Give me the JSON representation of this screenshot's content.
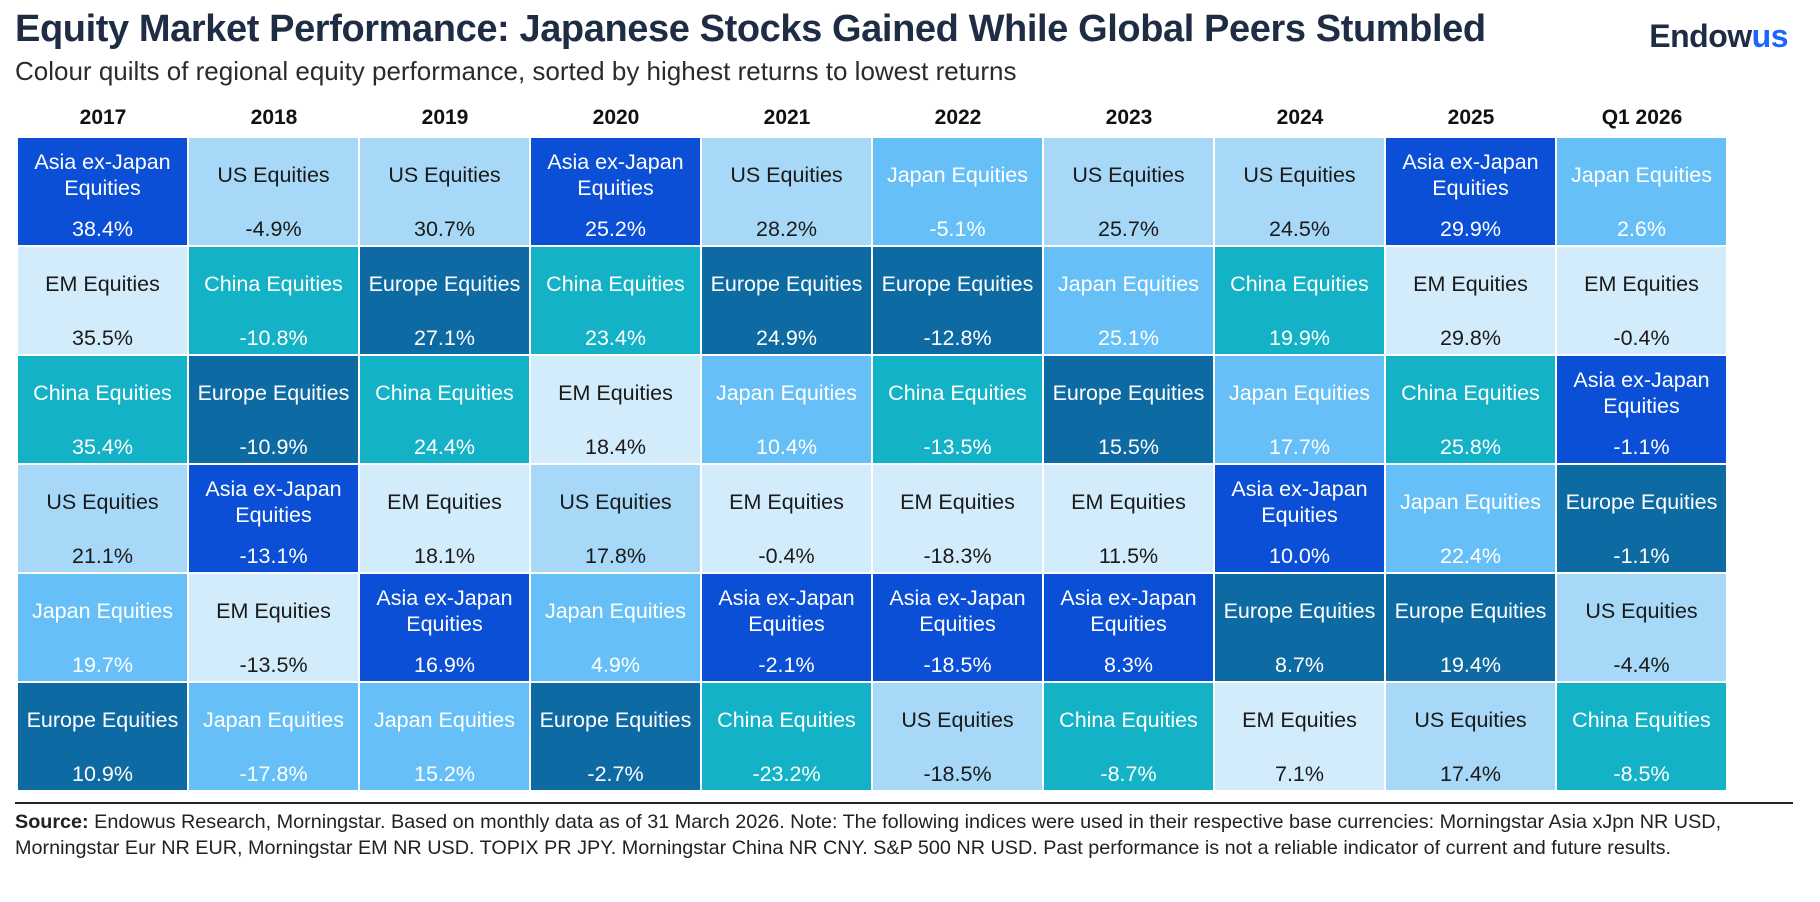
{
  "header": {
    "title": "Equity Market Performance: Japanese Stocks Gained While Global Peers Stumbled",
    "subtitle": "Colour quilts of regional equity performance, sorted by highest returns to lowest returns",
    "logo_main": "Endow",
    "logo_accent": "us"
  },
  "chart_data": {
    "type": "table",
    "title": "Equity Market Performance: Japanese Stocks Gained While Global Peers Stumbled",
    "subtitle": "Colour quilts of regional equity performance, sorted by highest returns to lowest returns",
    "years": [
      "2017",
      "2018",
      "2019",
      "2020",
      "2021",
      "2022",
      "2023",
      "2024",
      "2025",
      "Q1 2026"
    ],
    "columns": [
      [
        {
          "name": "Asia ex-Japan Equities",
          "value": "38.4%"
        },
        {
          "name": "EM Equities",
          "value": "35.5%"
        },
        {
          "name": "China Equities",
          "value": "35.4%"
        },
        {
          "name": "US Equities",
          "value": "21.1%"
        },
        {
          "name": "Japan Equities",
          "value": "19.7%"
        },
        {
          "name": "Europe Equities",
          "value": "10.9%"
        }
      ],
      [
        {
          "name": "US Equities",
          "value": "-4.9%"
        },
        {
          "name": "China Equities",
          "value": "-10.8%"
        },
        {
          "name": "Europe Equities",
          "value": "-10.9%"
        },
        {
          "name": "Asia ex-Japan Equities",
          "value": "-13.1%"
        },
        {
          "name": "EM Equities",
          "value": "-13.5%"
        },
        {
          "name": "Japan Equities",
          "value": "-17.8%"
        }
      ],
      [
        {
          "name": "US Equities",
          "value": "30.7%"
        },
        {
          "name": "Europe Equities",
          "value": "27.1%"
        },
        {
          "name": "China Equities",
          "value": "24.4%"
        },
        {
          "name": "EM Equities",
          "value": "18.1%"
        },
        {
          "name": "Asia ex-Japan Equities",
          "value": "16.9%"
        },
        {
          "name": "Japan Equities",
          "value": "15.2%"
        }
      ],
      [
        {
          "name": "Asia ex-Japan Equities",
          "value": "25.2%"
        },
        {
          "name": "China Equities",
          "value": "23.4%"
        },
        {
          "name": "EM Equities",
          "value": "18.4%"
        },
        {
          "name": "US Equities",
          "value": "17.8%"
        },
        {
          "name": "Japan Equities",
          "value": "4.9%"
        },
        {
          "name": "Europe Equities",
          "value": "-2.7%"
        }
      ],
      [
        {
          "name": "US Equities",
          "value": "28.2%"
        },
        {
          "name": "Europe Equities",
          "value": "24.9%"
        },
        {
          "name": "Japan Equities",
          "value": "10.4%"
        },
        {
          "name": "EM Equities",
          "value": "-0.4%"
        },
        {
          "name": "Asia ex-Japan Equities",
          "value": "-2.1%"
        },
        {
          "name": "China Equities",
          "value": "-23.2%"
        }
      ],
      [
        {
          "name": "Japan Equities",
          "value": "-5.1%"
        },
        {
          "name": "Europe Equities",
          "value": "-12.8%"
        },
        {
          "name": "China Equities",
          "value": "-13.5%"
        },
        {
          "name": "EM Equities",
          "value": "-18.3%"
        },
        {
          "name": "Asia ex-Japan Equities",
          "value": "-18.5%"
        },
        {
          "name": "US Equities",
          "value": "-18.5%"
        }
      ],
      [
        {
          "name": "US Equities",
          "value": "25.7%"
        },
        {
          "name": "Japan Equities",
          "value": "25.1%"
        },
        {
          "name": "Europe Equities",
          "value": "15.5%"
        },
        {
          "name": "EM Equities",
          "value": "11.5%"
        },
        {
          "name": "Asia ex-Japan Equities",
          "value": "8.3%"
        },
        {
          "name": "China Equities",
          "value": "-8.7%"
        }
      ],
      [
        {
          "name": "US Equities",
          "value": "24.5%"
        },
        {
          "name": "China Equities",
          "value": "19.9%"
        },
        {
          "name": "Japan Equities",
          "value": "17.7%"
        },
        {
          "name": "Asia ex-Japan Equities",
          "value": "10.0%"
        },
        {
          "name": "Europe Equities",
          "value": "8.7%"
        },
        {
          "name": "EM Equities",
          "value": "7.1%"
        }
      ],
      [
        {
          "name": "Asia ex-Japan Equities",
          "value": "29.9%"
        },
        {
          "name": "EM Equities",
          "value": "29.8%"
        },
        {
          "name": "China Equities",
          "value": "25.8%"
        },
        {
          "name": "Japan Equities",
          "value": "22.4%"
        },
        {
          "name": "Europe Equities",
          "value": "19.4%"
        },
        {
          "name": "US Equities",
          "value": "17.4%"
        }
      ],
      [
        {
          "name": "Japan Equities",
          "value": "2.6%"
        },
        {
          "name": "EM Equities",
          "value": "-0.4%"
        },
        {
          "name": "Asia ex-Japan Equities",
          "value": "-1.1%"
        },
        {
          "name": "Europe Equities",
          "value": "-1.1%"
        },
        {
          "name": "US Equities",
          "value": "-4.4%"
        },
        {
          "name": "China Equities",
          "value": "-8.5%"
        }
      ]
    ],
    "colors": {
      "Asia ex-Japan Equities": {
        "bg": "#0b4fd6",
        "fg": "#ffffff"
      },
      "US Equities": {
        "bg": "#a7d8f7",
        "fg": "#1a1a1a"
      },
      "EM Equities": {
        "bg": "#d3ecfb",
        "fg": "#1a1a1a"
      },
      "China Equities": {
        "bg": "#14b2c6",
        "fg": "#ffffff"
      },
      "Japan Equities": {
        "bg": "#66c0f7",
        "fg": "#ffffff"
      },
      "Europe Equities": {
        "bg": "#0e6aa3",
        "fg": "#ffffff"
      }
    }
  },
  "footer": {
    "source_label": "Source:",
    "source_text": " Endowus Research, Morningstar. Based on monthly data as of 31 March 2026. Note: The following indices were used in their respective base currencies: Morningstar Asia xJpn NR USD, Morningstar Eur NR EUR, Morningstar EM NR USD. TOPIX PR JPY. Morningstar China NR CNY. S&P 500 NR USD. Past performance is not a reliable indicator of current and future results."
  }
}
